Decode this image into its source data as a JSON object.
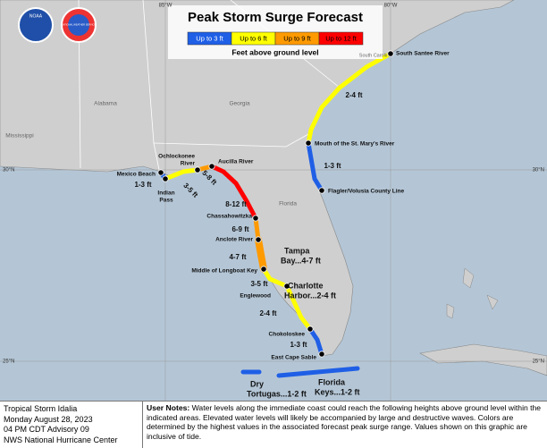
{
  "header": {
    "title": "Peak Storm Surge Forecast",
    "legend_caption": "Feet above ground level",
    "logos": [
      "NOAA",
      "NATIONAL WEATHER SERVICE"
    ]
  },
  "legend": [
    {
      "label": "Up to 3 ft",
      "color": "#1f5fe6"
    },
    {
      "label": "Up to 6 ft",
      "color": "#ffff00"
    },
    {
      "label": "Up to 9 ft",
      "color": "#ff9a00"
    },
    {
      "label": "Up to 12 ft",
      "color": "#ff0000"
    }
  ],
  "states": [
    "Mississippi",
    "Alabama",
    "Georgia",
    "South Carolina",
    "Florida"
  ],
  "grid_labels": [
    "85°W",
    "80°W",
    "30°N",
    "25°N"
  ],
  "locations": [
    [
      "South Santee River"
    ],
    [
      "Mouth of the St. Mary's River"
    ],
    [
      "Flagler/Volusia County Line"
    ],
    [
      "Aucilla River"
    ],
    [
      "Ochlockonee",
      "River"
    ],
    [
      "Mexico Beach"
    ],
    [
      "Indian",
      "Pass"
    ],
    [
      "Chassahowitzka"
    ],
    [
      "Anclote River"
    ],
    [
      "Middle of Longboat Key"
    ],
    [
      "Englewood"
    ],
    [
      "Chokoloskee"
    ],
    [
      "East Cape Sable"
    ]
  ],
  "surge_labels": [
    [
      "2-4 ft"
    ],
    [
      "1-3 ft"
    ],
    [
      "1-3 ft"
    ],
    [
      "3-5 ft"
    ],
    [
      "5-8 ft"
    ],
    [
      "8-12 ft"
    ],
    [
      "6-9 ft"
    ],
    [
      "4-7 ft"
    ],
    [
      "3-5 ft"
    ],
    [
      "2-4 ft"
    ],
    [
      "1-3 ft"
    ],
    [
      "Tampa",
      "Bay...4-7 ft"
    ],
    [
      "Charlotte",
      "Harbor...2-4 ft"
    ],
    [
      "Dry",
      "Tortugas...1-2 ft"
    ],
    [
      "Florida",
      "Keys...1-2 ft"
    ]
  ],
  "footer": {
    "info": [
      "Tropical Storm Idalia",
      "Monday August 28, 2023",
      "04 PM CDT Advisory 09",
      "NWS National Hurricane Center"
    ],
    "notes_label": "User Notes:",
    "notes": "Water levels along the immediate coast could reach the following heights above ground level within the indicated areas. Elevated water levels will likely be accompanied by large and destructive waves. Colors are determined by the highest values in the associated forecast peak surge range. Values shown on this graphic are inclusive of tide."
  }
}
